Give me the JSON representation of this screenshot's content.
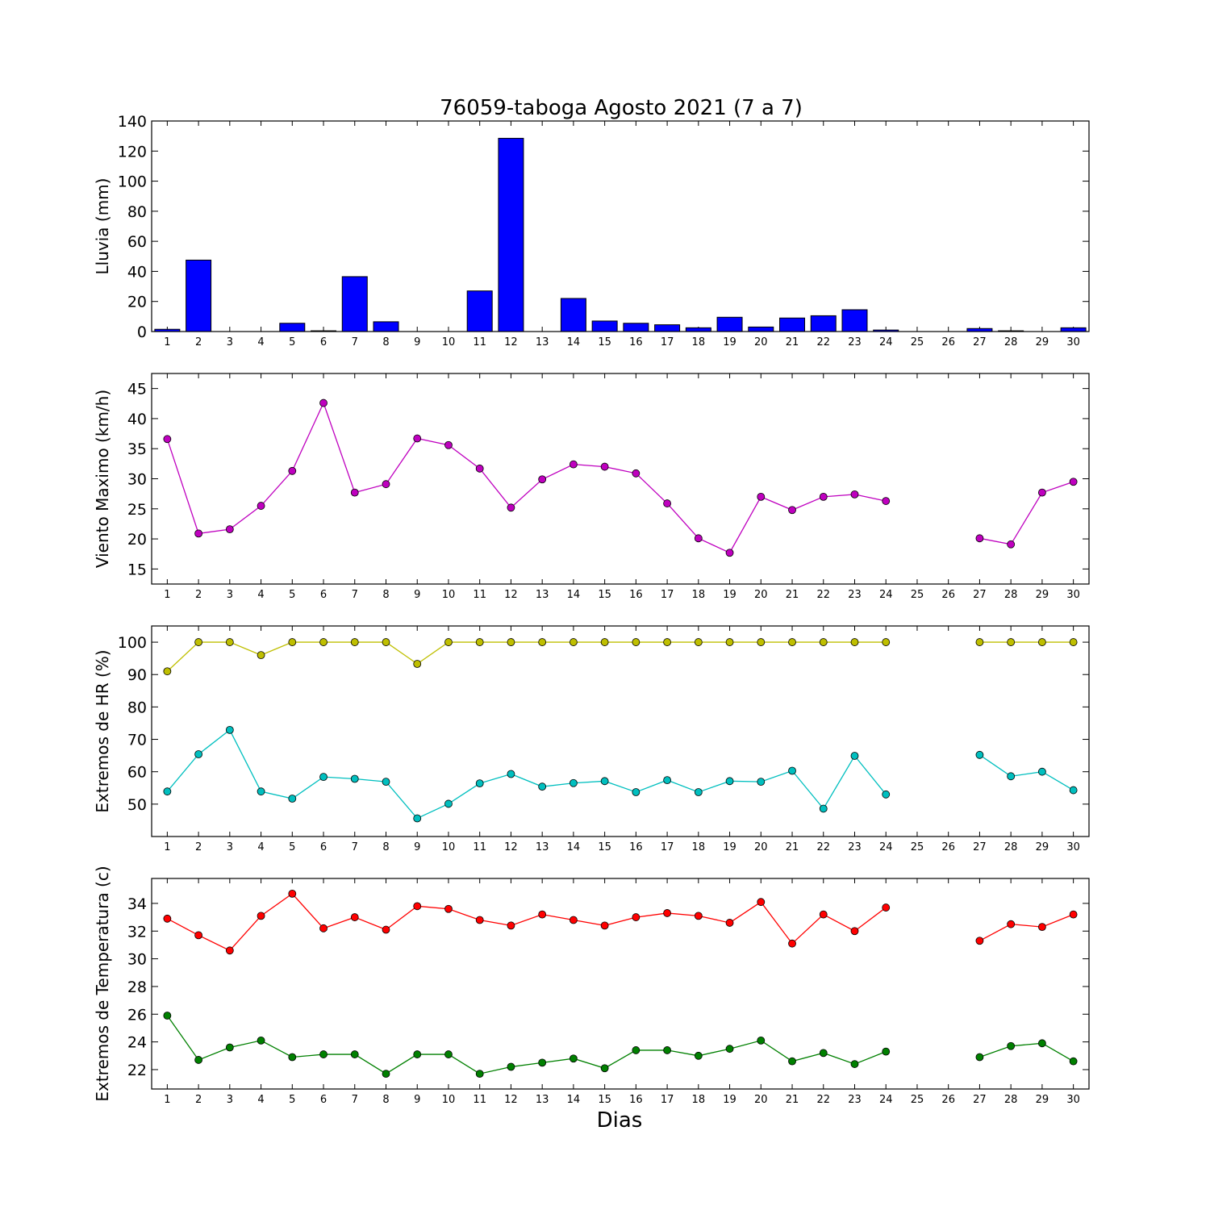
{
  "figure": {
    "title": "76059-taboga Agosto 2021  (7 a 7)",
    "xlabel": "Dias"
  },
  "chart_data": [
    {
      "type": "bar",
      "id": "lluvia",
      "ylabel": "Lluvia (mm)",
      "ylim": [
        0,
        140
      ],
      "yticks": [
        0,
        20,
        40,
        60,
        80,
        100,
        120,
        140
      ],
      "categories": [
        "1",
        "2",
        "3",
        "4",
        "5",
        "6",
        "7",
        "8",
        "9",
        "10",
        "11",
        "12",
        "13",
        "14",
        "15",
        "16",
        "17",
        "18",
        "19",
        "20",
        "21",
        "22",
        "23",
        "24",
        "25",
        "26",
        "27",
        "28",
        "29",
        "30"
      ],
      "values": [
        1.5,
        47.5,
        0,
        0,
        5.5,
        0.5,
        36.5,
        6.5,
        0,
        0,
        27,
        128.5,
        0,
        22,
        7,
        5.5,
        4.5,
        2.5,
        9.5,
        3,
        9,
        10.5,
        14.5,
        1,
        0,
        0,
        2,
        0.5,
        0,
        2.5
      ],
      "color": "#0000ff"
    },
    {
      "type": "line",
      "id": "viento",
      "ylabel": "Viento Maximo (km/h)",
      "ylim": [
        12.5,
        47.5
      ],
      "yticks": [
        15,
        20,
        25,
        30,
        35,
        40,
        45
      ],
      "x": [
        1,
        2,
        3,
        4,
        5,
        6,
        7,
        8,
        9,
        10,
        11,
        12,
        13,
        14,
        15,
        16,
        17,
        18,
        19,
        20,
        21,
        22,
        23,
        24,
        25,
        26,
        27,
        28,
        29,
        30
      ],
      "series": [
        {
          "values": [
            36.6,
            20.9,
            21.6,
            25.5,
            31.3,
            42.6,
            27.7,
            29.1,
            36.7,
            35.6,
            31.7,
            25.2,
            29.9,
            32.4,
            32.0,
            30.9,
            25.9,
            20.1,
            17.7,
            27.0,
            24.8,
            27.0,
            27.4,
            26.3,
            null,
            null,
            20.1,
            19.1,
            27.7,
            29.5
          ],
          "color": "#bf00bf"
        }
      ]
    },
    {
      "type": "line",
      "id": "humedad",
      "ylabel": "Extremos de HR (%)",
      "ylim": [
        40,
        105
      ],
      "yticks": [
        50,
        60,
        70,
        80,
        90,
        100
      ],
      "x": [
        1,
        2,
        3,
        4,
        5,
        6,
        7,
        8,
        9,
        10,
        11,
        12,
        13,
        14,
        15,
        16,
        17,
        18,
        19,
        20,
        21,
        22,
        23,
        24,
        25,
        26,
        27,
        28,
        29,
        30
      ],
      "series": [
        {
          "values": [
            91,
            100,
            100,
            96,
            100,
            100,
            100,
            100,
            93.3,
            100,
            100,
            100,
            100,
            100,
            100,
            100,
            100,
            100,
            100,
            100,
            100,
            100,
            100,
            100,
            null,
            null,
            100,
            100,
            100,
            100
          ],
          "color": "#bfbf00"
        },
        {
          "values": [
            53.9,
            65.4,
            72.9,
            53.9,
            51.7,
            58.4,
            57.8,
            56.9,
            45.6,
            50.1,
            56.4,
            59.3,
            55.4,
            56.5,
            57.1,
            53.7,
            57.4,
            53.7,
            57.1,
            56.9,
            60.3,
            48.6,
            64.9,
            53.0,
            null,
            null,
            65.2,
            58.6,
            60.0,
            54.3
          ],
          "color": "#00bfbf"
        }
      ]
    },
    {
      "type": "line",
      "id": "temperatura",
      "ylabel": "Extremos de Temperatura (c)",
      "ylim": [
        20.6,
        35.8
      ],
      "yticks": [
        22,
        24,
        26,
        28,
        30,
        32,
        34
      ],
      "x": [
        1,
        2,
        3,
        4,
        5,
        6,
        7,
        8,
        9,
        10,
        11,
        12,
        13,
        14,
        15,
        16,
        17,
        18,
        19,
        20,
        21,
        22,
        23,
        24,
        25,
        26,
        27,
        28,
        29,
        30
      ],
      "series": [
        {
          "values": [
            32.9,
            31.7,
            30.6,
            33.1,
            34.7,
            32.2,
            33.0,
            32.1,
            33.8,
            33.6,
            32.8,
            32.4,
            33.2,
            32.8,
            32.4,
            33.0,
            33.3,
            33.1,
            32.6,
            34.1,
            31.1,
            33.2,
            32.0,
            33.7,
            null,
            null,
            31.3,
            32.5,
            32.3,
            33.2
          ],
          "color": "#ff0000"
        },
        {
          "values": [
            25.9,
            22.7,
            23.6,
            24.1,
            22.9,
            23.1,
            23.1,
            21.7,
            23.1,
            23.1,
            21.7,
            22.2,
            22.5,
            22.8,
            22.1,
            23.4,
            23.4,
            23.0,
            23.5,
            24.1,
            22.6,
            23.2,
            22.4,
            23.3,
            null,
            null,
            22.9,
            23.7,
            23.9,
            22.6
          ],
          "color": "#008000"
        }
      ]
    }
  ]
}
